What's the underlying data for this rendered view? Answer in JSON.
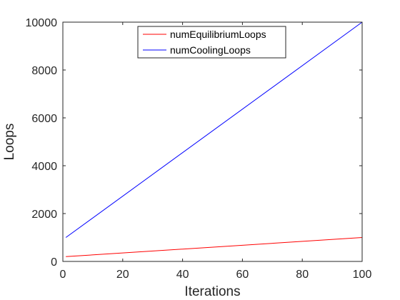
{
  "chart_data": {
    "type": "line",
    "title": "",
    "xlabel": "Iterations",
    "ylabel": "Loops",
    "xlim": [
      0,
      100
    ],
    "ylim": [
      0,
      10000
    ],
    "xticks": [
      0,
      20,
      40,
      60,
      80,
      100
    ],
    "yticks": [
      0,
      2000,
      4000,
      6000,
      8000,
      10000
    ],
    "grid": false,
    "legend_position": "top-center",
    "series": [
      {
        "name": "numEquilibriumLoops",
        "color": "#ff0000",
        "x": [
          1,
          100
        ],
        "y": [
          200,
          1000
        ]
      },
      {
        "name": "numCoolingLoops",
        "color": "#0000ff",
        "x": [
          1,
          100
        ],
        "y": [
          1000,
          10000
        ]
      }
    ]
  }
}
